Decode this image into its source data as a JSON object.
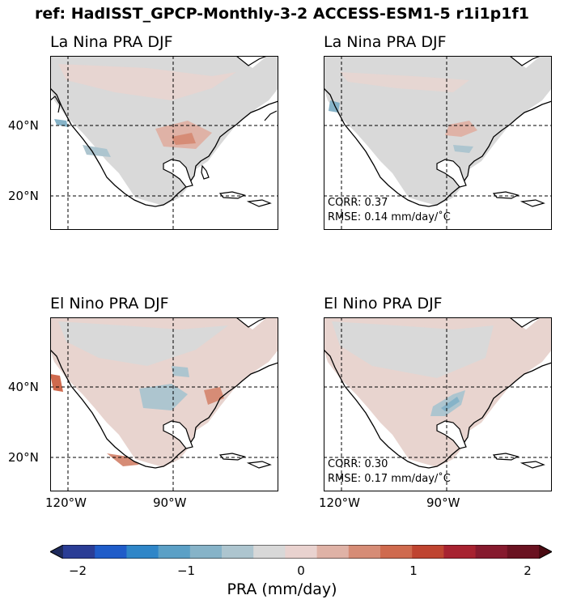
{
  "suptitle": "ref: HadISST_GPCP-Monthly-3-2 ACCESS-ESM1-5 r1i1p1f1",
  "panels": [
    {
      "title": "La Nina PRA DJF"
    },
    {
      "title": "La Nina PRA DJF",
      "corr": "CORR: 0.37",
      "rmse": "RMSE: 0.14 mm/day/$^{\\circ}$C"
    },
    {
      "title": "El Nino PRA DJF"
    },
    {
      "title": "El Nino PRA DJF",
      "corr": "CORR: 0.30",
      "rmse": "RMSE: 0.17 mm/day/$^{\\circ}$C"
    }
  ],
  "stats_display": {
    "p1_rmse": "RMSE: 0.14 mm/day/˚C",
    "p3_rmse": "RMSE: 0.17 mm/day/˚C"
  },
  "lat_labels": [
    "40°N",
    "20°N"
  ],
  "lon_labels": [
    "120°W",
    "90°W"
  ],
  "colorbar": {
    "label": "PRA (mm/day)",
    "ticks": [
      "−2",
      "−1",
      "0",
      "1",
      "2"
    ],
    "range": [
      -2,
      2
    ],
    "colors": [
      "#1e2a5c",
      "#2a3d96",
      "#1f5cc9",
      "#2f86c8",
      "#5ba0c6",
      "#86b3c8",
      "#adc5cf",
      "#d8d8d8",
      "#e9d2cf",
      "#dfb2a6",
      "#d68c76",
      "#cf6a4e",
      "#bf4430",
      "#a72230",
      "#861a2e",
      "#6a1221",
      "#4a0a12"
    ]
  }
}
